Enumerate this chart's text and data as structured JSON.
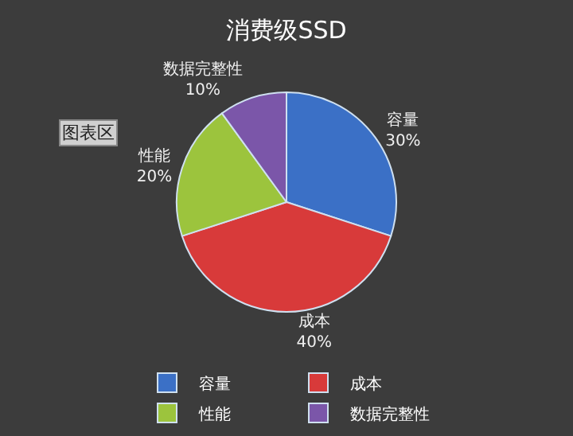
{
  "chart_data": {
    "type": "pie",
    "title": "消费级SSD",
    "categories": [
      "容量",
      "成本",
      "性能",
      "数据完整性"
    ],
    "values": [
      30,
      40,
      20,
      10
    ],
    "value_labels": [
      "30%",
      "40%",
      "20%",
      "10%"
    ],
    "colors": [
      "#3b70c6",
      "#d83a3a",
      "#9cc43d",
      "#7b56a9"
    ],
    "legend": "bottom",
    "annotations": [
      "图表区"
    ]
  }
}
